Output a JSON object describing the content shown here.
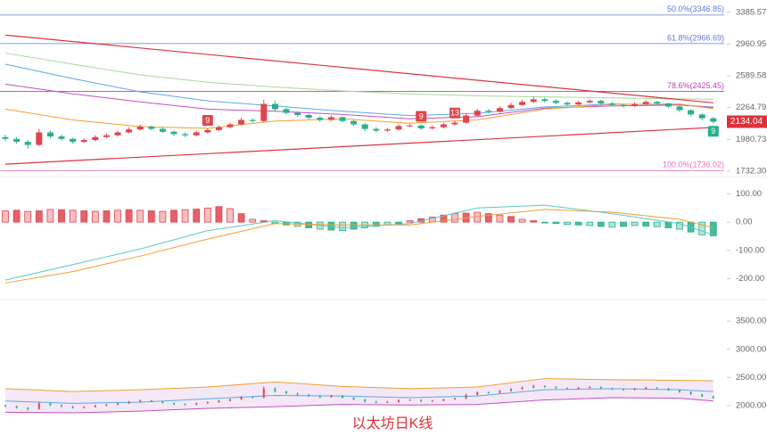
{
  "chart_data": [
    {
      "type": "candlestick",
      "title": "以太坊日K线",
      "log_scale": true,
      "up_color": "#e0454f",
      "down_color": "#27b08a",
      "open": [
        2000,
        1985,
        1960,
        1935,
        2040,
        2005,
        1985,
        1960,
        1975,
        2000,
        2015,
        2040,
        2065,
        2090,
        2070,
        2045,
        2025,
        2015,
        2040,
        2060,
        2085,
        2110,
        2150,
        2140,
        2300,
        2250,
        2215,
        2195,
        2170,
        2150,
        2175,
        2140,
        2110,
        2070,
        2055,
        2065,
        2095,
        2100,
        2075,
        2085,
        2110,
        2125,
        2190,
        2235,
        2225,
        2260,
        2290,
        2320,
        2345,
        2330,
        2310,
        2295,
        2315,
        2330,
        2305,
        2290,
        2280,
        2300,
        2320,
        2305,
        2275,
        2240,
        2200,
        2165
      ],
      "high": [
        2020,
        2000,
        1975,
        2070,
        2055,
        2020,
        1995,
        1990,
        2015,
        2030,
        2055,
        2085,
        2110,
        2100,
        2085,
        2055,
        2040,
        2055,
        2075,
        2100,
        2125,
        2170,
        2165,
        2340,
        2330,
        2265,
        2230,
        2205,
        2185,
        2190,
        2185,
        2150,
        2120,
        2085,
        2080,
        2110,
        2115,
        2110,
        2100,
        2125,
        2140,
        2210,
        2255,
        2250,
        2275,
        2310,
        2340,
        2370,
        2360,
        2345,
        2325,
        2330,
        2345,
        2340,
        2320,
        2300,
        2315,
        2335,
        2330,
        2315,
        2285,
        2250,
        2210,
        2175
      ],
      "low": [
        1970,
        1945,
        1905,
        1925,
        1990,
        1970,
        1945,
        1950,
        1965,
        1990,
        2005,
        2030,
        2055,
        2060,
        2035,
        2010,
        2000,
        2005,
        2030,
        2050,
        2075,
        2100,
        2125,
        2130,
        2230,
        2200,
        2180,
        2155,
        2135,
        2140,
        2125,
        2095,
        2050,
        2040,
        2045,
        2055,
        2085,
        2060,
        2065,
        2075,
        2100,
        2115,
        2180,
        2210,
        2215,
        2250,
        2280,
        2310,
        2315,
        2295,
        2280,
        2285,
        2305,
        2290,
        2275,
        2265,
        2270,
        2290,
        2295,
        2260,
        2225,
        2185,
        2150,
        2120
      ],
      "close": [
        1985,
        1960,
        1935,
        2040,
        2005,
        1985,
        1960,
        1975,
        2000,
        2015,
        2040,
        2065,
        2090,
        2070,
        2045,
        2025,
        2015,
        2040,
        2060,
        2085,
        2110,
        2150,
        2140,
        2300,
        2250,
        2215,
        2195,
        2170,
        2150,
        2175,
        2140,
        2110,
        2070,
        2055,
        2065,
        2095,
        2100,
        2075,
        2085,
        2110,
        2125,
        2190,
        2235,
        2225,
        2260,
        2290,
        2320,
        2345,
        2330,
        2310,
        2295,
        2315,
        2330,
        2305,
        2290,
        2280,
        2300,
        2320,
        2305,
        2275,
        2240,
        2200,
        2165,
        2134.04
      ],
      "ylim": [
        1706,
        3539
      ],
      "yticks": [
        3385.57,
        2960.95,
        2589.58,
        2264.79,
        1980.73,
        {
          "value": 1732.3,
          "label": "1732.30"
        }
      ],
      "ma": [
        {
          "color": "#a8d89a",
          "x": [
            0,
            6,
            12,
            18,
            24,
            30,
            36,
            42,
            48,
            54,
            60,
            63
          ],
          "values": [
            2850,
            2720,
            2600,
            2520,
            2470,
            2430,
            2400,
            2380,
            2370,
            2360,
            2350,
            2345
          ]
        },
        {
          "color": "#5aa9e6",
          "x": [
            0,
            6,
            12,
            18,
            24,
            30,
            36,
            42,
            48,
            54,
            60,
            63
          ],
          "values": [
            2720,
            2560,
            2420,
            2330,
            2280,
            2230,
            2190,
            2210,
            2270,
            2300,
            2290,
            2270
          ]
        },
        {
          "color": "#c44fc4",
          "x": [
            0,
            6,
            12,
            18,
            24,
            30,
            36,
            42,
            48,
            54,
            60,
            63
          ],
          "values": [
            2500,
            2400,
            2320,
            2250,
            2230,
            2200,
            2160,
            2180,
            2260,
            2280,
            2290,
            2265
          ]
        },
        {
          "color": "#f0a030",
          "x": [
            0,
            6,
            12,
            18,
            24,
            30,
            36,
            42,
            48,
            54,
            60,
            63
          ],
          "values": [
            2250,
            2150,
            2090,
            2075,
            2140,
            2160,
            2120,
            2150,
            2250,
            2295,
            2300,
            2255
          ]
        }
      ],
      "trendlines": [
        {
          "color": "#d9363e",
          "x": [
            0,
            63
          ],
          "values": [
            3075,
            2311
          ]
        },
        {
          "color": "#d9363e",
          "x": [
            0,
            63
          ],
          "values": [
            1784,
            2083
          ]
        }
      ],
      "fib": [
        {
          "label": "50.0%(3346.85)",
          "value": 3346.85,
          "color": "#5b7bd5"
        },
        {
          "label": "61.8%(2966.69)",
          "value": 2966.69,
          "color": "#5b7bd5"
        },
        {
          "label": "78.6%(2425.45)",
          "value": 2425.45,
          "color": "#c040c0"
        },
        {
          "label": "100.0%(1736.02)",
          "value": 1736.02,
          "color": "#e070c0"
        }
      ],
      "annotations": [
        {
          "text": "9",
          "at": 18,
          "side": "above",
          "color": "#e0454f"
        },
        {
          "text": "9",
          "at": 37,
          "side": "above",
          "color": "#e0454f"
        },
        {
          "text": "13",
          "at": 40,
          "side": "above",
          "color": "#e0454f"
        },
        {
          "text": "9",
          "at": 63,
          "side": "below",
          "color": "#27b08a"
        }
      ],
      "price_tag_color": "#e0303a"
    },
    {
      "type": "macd",
      "up_color": "#e0454f",
      "down_color": "#27b08a",
      "values": [
        40,
        42,
        38,
        40,
        45,
        44,
        42,
        40,
        38,
        40,
        42,
        44,
        42,
        40,
        38,
        42,
        44,
        46,
        50,
        55,
        48,
        30,
        10,
        5,
        -5,
        -10,
        -15,
        -20,
        -25,
        -28,
        -30,
        -25,
        -20,
        -15,
        -10,
        -5,
        5,
        12,
        18,
        25,
        30,
        32,
        35,
        30,
        25,
        20,
        10,
        5,
        -3,
        -5,
        -8,
        -10,
        -12,
        -15,
        -18,
        -15,
        -12,
        -14,
        -16,
        -20,
        -25,
        -35,
        -45,
        -48
      ],
      "series": [
        {
          "color": "#5bc8c8",
          "x": [
            0,
            6,
            12,
            18,
            24,
            30,
            36,
            42,
            48,
            54,
            60,
            63
          ],
          "values": [
            -205,
            -150,
            -95,
            -30,
            5,
            -20,
            -5,
            50,
            60,
            30,
            -5,
            -45
          ]
        },
        {
          "color": "#f0a030",
          "x": [
            0,
            6,
            12,
            18,
            24,
            30,
            36,
            42,
            48,
            54,
            60,
            63
          ],
          "values": [
            -215,
            -175,
            -120,
            -60,
            -5,
            -10,
            -10,
            20,
            45,
            35,
            10,
            -20
          ]
        }
      ],
      "ylim": [
        -255,
        155
      ],
      "yticks": [
        {
          "value": 100,
          "label": "100.00"
        },
        {
          "value": 0,
          "label": "0.00"
        },
        {
          "value": -100,
          "label": "-100.00"
        },
        {
          "value": -200,
          "label": "-200.00"
        }
      ]
    },
    {
      "type": "bollinger",
      "band_fill": "#ecd9f2",
      "series": [
        {
          "color": "#f0a030",
          "x": [
            0,
            6,
            12,
            18,
            24,
            30,
            36,
            42,
            48,
            54,
            60,
            63
          ],
          "values": [
            2300,
            2250,
            2280,
            2330,
            2420,
            2340,
            2300,
            2330,
            2480,
            2460,
            2450,
            2440
          ]
        },
        {
          "color": "#5aa9e6",
          "x": [
            0,
            6,
            12,
            18,
            24,
            30,
            36,
            42,
            48,
            54,
            60,
            63
          ],
          "values": [
            2080,
            2040,
            2060,
            2120,
            2180,
            2170,
            2140,
            2170,
            2280,
            2300,
            2280,
            2250
          ]
        },
        {
          "color": "#c44fc4",
          "x": [
            0,
            6,
            12,
            18,
            24,
            30,
            36,
            42,
            48,
            54,
            60,
            63
          ],
          "values": [
            1880,
            1870,
            1900,
            1950,
            1980,
            2020,
            2010,
            2020,
            2100,
            2140,
            2130,
            2080
          ]
        }
      ],
      "ylim": [
        1760,
        3820
      ],
      "yticks": [
        {
          "value": 3500,
          "label": "3500.00"
        },
        {
          "value": 3000,
          "label": "3000.00"
        },
        {
          "value": 2500,
          "label": "2500.00"
        },
        {
          "value": 2000,
          "label": "2000.00"
        }
      ]
    }
  ]
}
